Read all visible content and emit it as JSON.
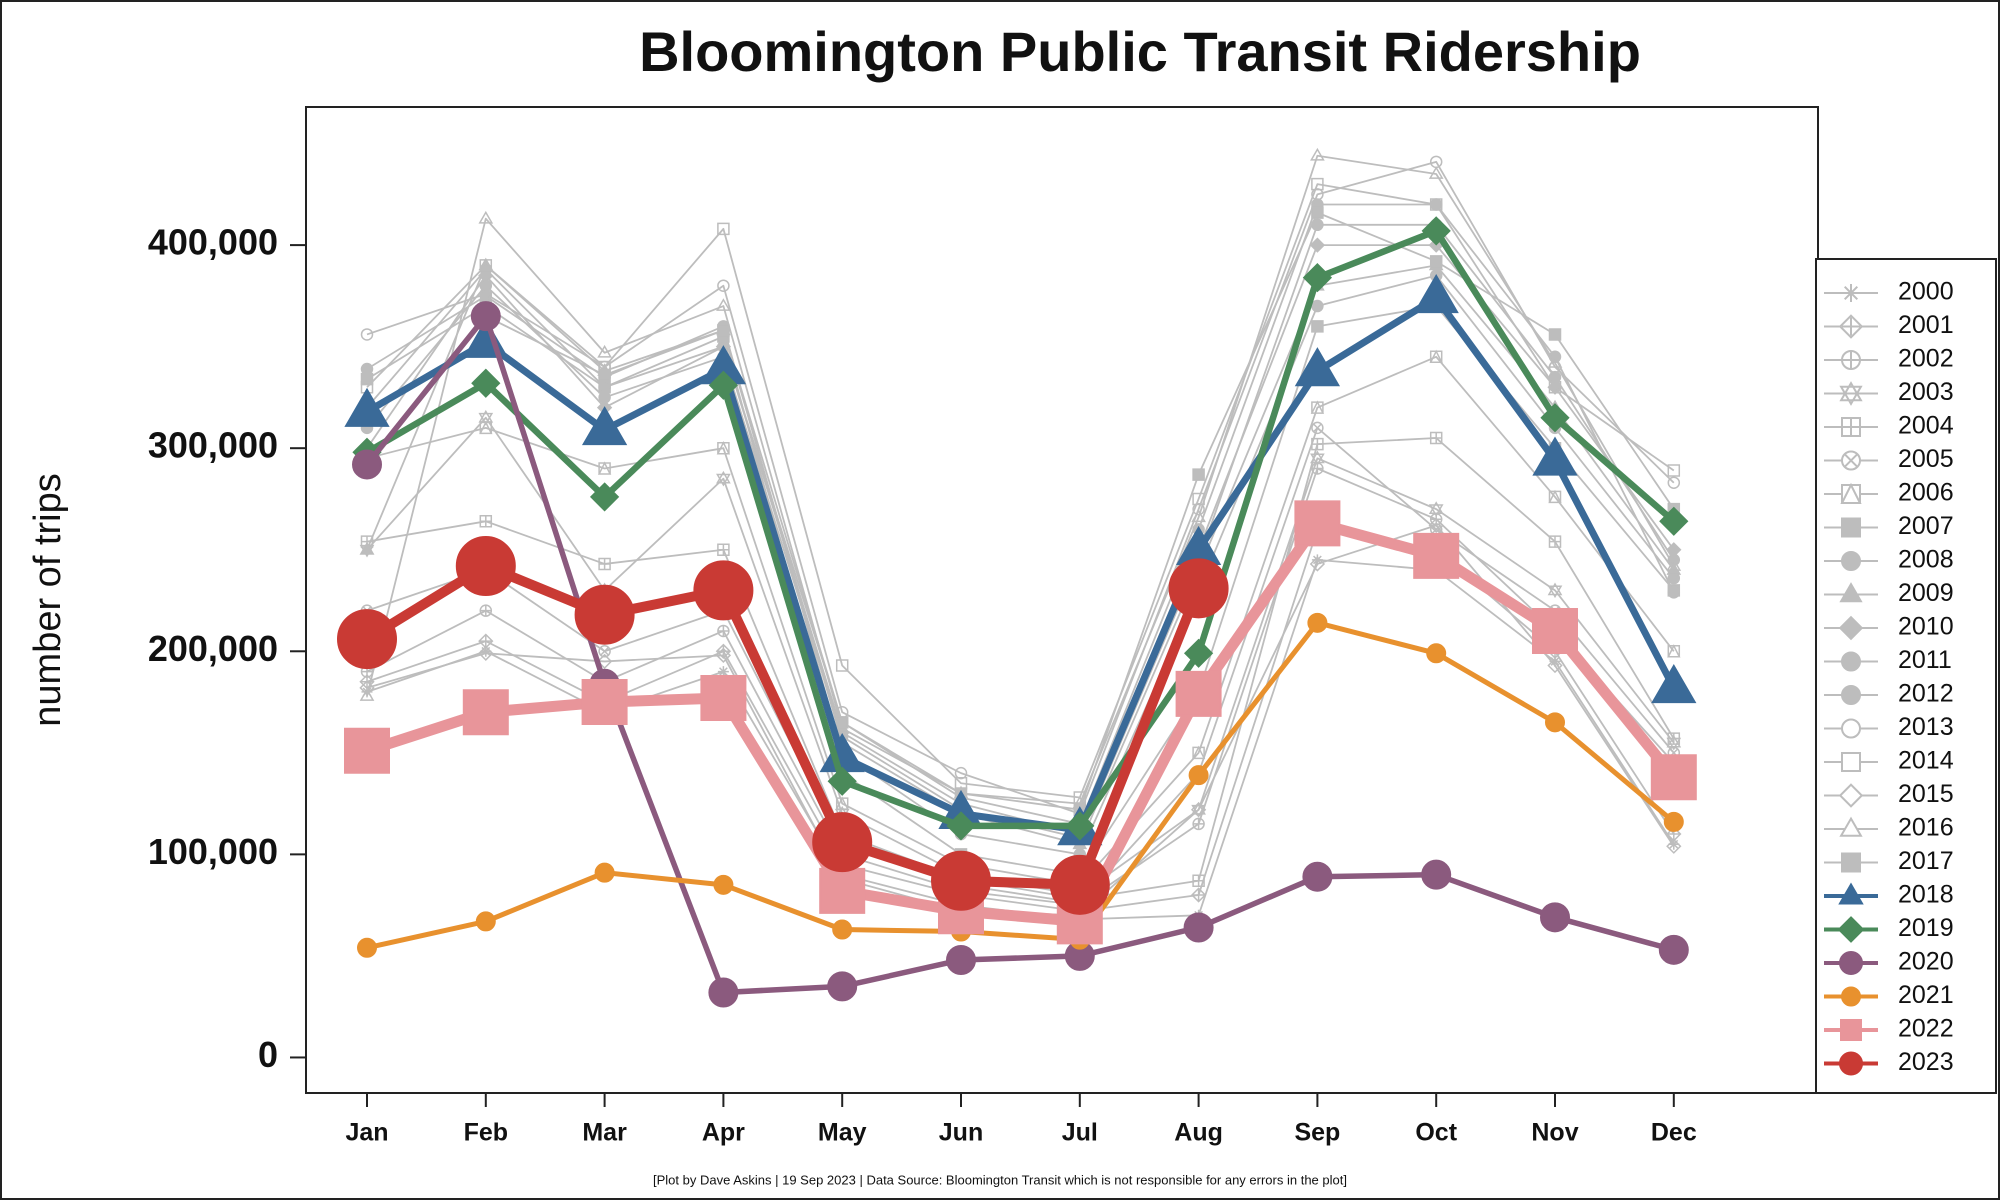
{
  "chart_data": {
    "type": "line",
    "title": "Bloomington Public Transit Ridership",
    "y_label": "number of trips",
    "footnote": "[Plot by Dave Askins | 19 Sep 2023 | Data Source: Bloomington Transit which is not responsible for any errors in the plot]",
    "categories": [
      "Jan",
      "Feb",
      "Mar",
      "Apr",
      "May",
      "Jun",
      "Jul",
      "Aug",
      "Sep",
      "Oct",
      "Nov",
      "Dec"
    ],
    "ylim": [
      -17500,
      468000
    ],
    "yticks": [
      0,
      {
        "value": 100000,
        "label": "100,000"
      },
      {
        "value": 200000,
        "label": "200,000"
      },
      {
        "value": 300000,
        "label": "300,000"
      },
      {
        "value": 400000,
        "label": "400,000"
      }
    ],
    "legend": "right",
    "series": [
      {
        "name": "2000",
        "color": "#bdbdbd",
        "marker": "asterisk",
        "values": [
          180000,
          200000,
          170000,
          190000,
          90000,
          75000,
          68000,
          70000,
          245000,
          240000,
          195000,
          105000
        ]
      },
      {
        "name": "2001",
        "color": "#bdbdbd",
        "marker": "diamond-plus",
        "values": [
          185000,
          205000,
          175000,
          200000,
          95000,
          80000,
          72000,
          80000,
          260000,
          250000,
          200000,
          110000
        ]
      },
      {
        "name": "2002",
        "color": "#bdbdbd",
        "marker": "circle-plus",
        "values": [
          190000,
          220000,
          185000,
          210000,
          100000,
          82000,
          75000,
          115000,
          290000,
          265000,
          210000,
          145000
        ]
      },
      {
        "name": "2003",
        "color": "#bdbdbd",
        "marker": "hexagram",
        "values": [
          250000,
          315000,
          230000,
          285000,
          120000,
          90000,
          80000,
          122000,
          295000,
          270000,
          230000,
          155000
        ]
      },
      {
        "name": "2004",
        "color": "#bdbdbd",
        "marker": "square-plus",
        "values": [
          254000,
          264000,
          243000,
          250000,
          110000,
          88000,
          78000,
          87000,
          302000,
          305000,
          254000,
          157000
        ]
      },
      {
        "name": "2005",
        "color": "#bdbdbd",
        "marker": "circle-x",
        "values": [
          220000,
          240000,
          200000,
          220000,
          105000,
          85000,
          76000,
          140000,
          310000,
          260000,
          220000,
          150000
        ]
      },
      {
        "name": "2006",
        "color": "#bdbdbd",
        "marker": "square-triangle",
        "values": [
          295000,
          310000,
          290000,
          300000,
          125000,
          95000,
          85000,
          150000,
          320000,
          345000,
          276000,
          200000
        ]
      },
      {
        "name": "2007",
        "color": "#bdbdbd",
        "marker": "square",
        "values": [
          334000,
          370000,
          330000,
          355000,
          140000,
          100000,
          90000,
          180000,
          360000,
          370000,
          300000,
          230000
        ]
      },
      {
        "name": "2008",
        "color": "#bdbdbd",
        "marker": "circle",
        "values": [
          339000,
          375000,
          335000,
          360000,
          150000,
          110000,
          100000,
          230000,
          370000,
          385000,
          310000,
          236000
        ]
      },
      {
        "name": "2009",
        "color": "#bdbdbd",
        "marker": "triangle",
        "values": [
          250000,
          390000,
          338000,
          358000,
          155000,
          120000,
          105000,
          240000,
          380000,
          390000,
          320000,
          240000
        ]
      },
      {
        "name": "2010",
        "color": "#bdbdbd",
        "marker": "diamond",
        "values": [
          300000,
          385000,
          320000,
          350000,
          160000,
          125000,
          110000,
          250000,
          400000,
          400000,
          330000,
          250000
        ]
      },
      {
        "name": "2011",
        "color": "#bdbdbd",
        "marker": "circle",
        "values": [
          310000,
          380000,
          325000,
          345000,
          158000,
          122000,
          108000,
          245000,
          410000,
          410000,
          335000,
          245000
        ]
      },
      {
        "name": "2012",
        "color": "#bdbdbd",
        "marker": "circle",
        "values": [
          320000,
          388000,
          330000,
          350000,
          165000,
          128000,
          115000,
          260000,
          420000,
          420000,
          345000,
          229000
        ]
      },
      {
        "name": "2013",
        "color": "#bdbdbd",
        "marker": "circle-open",
        "values": [
          356000,
          376000,
          340000,
          380000,
          170000,
          140000,
          120000,
          270000,
          425000,
          441000,
          340000,
          283000
        ]
      },
      {
        "name": "2014",
        "color": "#bdbdbd",
        "marker": "square-open",
        "values": [
          330000,
          390000,
          340000,
          408000,
          193000,
          135000,
          128000,
          275000,
          430000,
          420000,
          330000,
          289000
        ]
      },
      {
        "name": "2015",
        "color": "#bdbdbd",
        "marker": "diamond-open",
        "values": [
          182000,
          199000,
          195000,
          198000,
          88000,
          72000,
          70000,
          122000,
          243000,
          262000,
          193000,
          104000
        ]
      },
      {
        "name": "2016",
        "color": "#bdbdbd",
        "marker": "triangle-open",
        "values": [
          178000,
          413000,
          347000,
          370000,
          162000,
          130000,
          125000,
          266000,
          444000,
          435000,
          342000,
          242000
        ]
      },
      {
        "name": "2017",
        "color": "#bdbdbd",
        "marker": "square",
        "values": [
          290000,
          365000,
          336000,
          358000,
          165000,
          130000,
          122000,
          287000,
          416000,
          392000,
          356000,
          270000
        ]
      },
      {
        "name": "2018",
        "color": "#3a6a98",
        "marker": "triangle",
        "values": [
          318000,
          352000,
          309000,
          339000,
          148000,
          120000,
          112000,
          250000,
          338000,
          374000,
          294000,
          182000
        ]
      },
      {
        "name": "2019",
        "color": "#4a8a5a",
        "marker": "diamond",
        "values": [
          298000,
          332000,
          276000,
          331000,
          136000,
          114000,
          114000,
          199000,
          384000,
          407000,
          315000,
          264000
        ]
      },
      {
        "name": "2020",
        "color": "#8b5a7e",
        "marker": "circle",
        "values": [
          292000,
          365000,
          184000,
          32000,
          35000,
          48000,
          50000,
          64000,
          89000,
          90000,
          69000,
          53000
        ]
      },
      {
        "name": "2021",
        "color": "#e8912e",
        "marker": "circle",
        "values": [
          54000,
          67000,
          91000,
          85000,
          63000,
          62000,
          58000,
          139000,
          214000,
          199000,
          165000,
          116000
        ]
      },
      {
        "name": "2022",
        "color": "#e8959a",
        "marker": "square",
        "values": [
          151000,
          170000,
          175000,
          177000,
          82000,
          72000,
          67000,
          179000,
          263000,
          247000,
          210000,
          138000
        ]
      },
      {
        "name": "2023",
        "color": "#c93a34",
        "marker": "circle",
        "values": [
          206000,
          242000,
          218000,
          230000,
          106000,
          87000,
          85000,
          231000,
          null,
          null,
          null,
          null
        ]
      }
    ]
  }
}
